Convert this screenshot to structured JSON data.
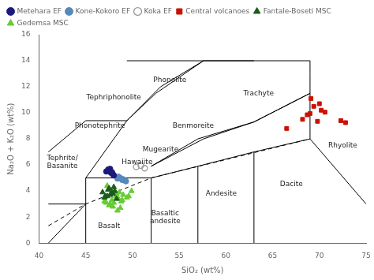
{
  "chart_data": {
    "type": "scatter",
    "xlabel": "SiO₂ (wt%)",
    "ylabel": "Na₂O + K₂O (wt%)",
    "xlim": [
      40,
      75
    ],
    "ylim": [
      0,
      16
    ],
    "xticks": [
      40,
      45,
      50,
      55,
      60,
      65,
      70,
      75
    ],
    "yticks": [
      0,
      2,
      4,
      6,
      8,
      10,
      12,
      14,
      16
    ],
    "grid": false,
    "legend": "upper left",
    "series": [
      {
        "name": "Metehara EF",
        "color": "#1a1a7c",
        "marker": "circle",
        "x": [
          47.2,
          47.5,
          47.7,
          47.9,
          48.0,
          47.6,
          47.8,
          47.4
        ],
        "values": [
          5.5,
          5.6,
          5.4,
          5.3,
          5.2,
          5.7,
          5.45,
          5.65
        ]
      },
      {
        "name": "Kone-Kokoro EF",
        "color": "#5588bb",
        "marker": "circle",
        "x": [
          48.4,
          48.7,
          49.0,
          49.2,
          48.5,
          48.9,
          49.3
        ],
        "values": [
          4.95,
          5.0,
          4.9,
          4.8,
          5.1,
          4.85,
          4.75
        ]
      },
      {
        "name": "Koka EF",
        "color": "#999999",
        "marker": "open_circle",
        "x": [
          50.4,
          50.9,
          51.3
        ],
        "values": [
          5.85,
          5.95,
          5.75
        ]
      },
      {
        "name": "Fantale-Boseti MSC",
        "color": "#1a5c1a",
        "marker": "triangle",
        "x": [
          46.8,
          47.1,
          47.4,
          47.6,
          47.9,
          48.1,
          47.0,
          47.5,
          48.3,
          47.8,
          48.0,
          47.3
        ],
        "values": [
          3.9,
          3.6,
          4.1,
          3.7,
          3.8,
          4.0,
          3.5,
          4.2,
          3.4,
          3.9,
          4.3,
          3.6
        ]
      },
      {
        "name": "Gedemsa MSC",
        "color": "#66cc33",
        "marker": "triangle",
        "x": [
          47.2,
          47.5,
          47.8,
          48.2,
          48.5,
          48.8,
          49.0,
          49.4,
          47.6,
          48.0,
          48.3,
          48.9,
          47.3,
          48.6,
          47.9,
          49.6,
          49.9,
          48.7,
          47.0,
          48.4
        ],
        "values": [
          3.1,
          2.9,
          3.3,
          3.6,
          3.4,
          3.2,
          3.7,
          3.5,
          3.0,
          3.1,
          3.8,
          3.3,
          4.4,
          3.9,
          2.8,
          3.6,
          4.0,
          2.7,
          3.2,
          2.5
        ]
      },
      {
        "name": "Central volcanoes",
        "color": "#cc1100",
        "marker": "square",
        "x": [
          66.5,
          68.2,
          68.7,
          69.0,
          69.1,
          69.4,
          69.8,
          70.0,
          70.2,
          70.6,
          72.3,
          72.8
        ],
        "values": [
          8.8,
          9.5,
          9.85,
          9.95,
          11.1,
          10.5,
          9.35,
          10.7,
          10.2,
          10.05,
          9.4,
          9.25
        ]
      },
      {
        "type": "line",
        "color": "#000000",
        "line_style": "solid",
        "x": [
          41,
          45,
          null,
          41,
          45,
          null,
          45,
          45,
          null,
          45,
          52,
          null,
          52,
          52,
          null,
          52,
          57,
          null,
          57,
          57,
          null,
          57,
          63,
          null,
          63,
          63,
          null,
          63,
          69,
          null,
          69,
          69,
          null,
          69,
          75,
          null,
          41,
          45,
          null,
          45,
          49.4,
          null,
          45,
          49.4,
          null,
          49.4,
          53,
          null,
          53,
          57.6,
          null,
          49.4,
          52.5,
          null,
          52.5,
          57.6,
          null,
          49.4,
          63,
          null,
          57.6,
          69,
          null,
          57.6,
          63,
          null,
          63,
          69,
          null,
          52,
          57.6,
          null,
          69,
          69,
          null,
          52,
          57,
          null,
          57,
          63,
          null,
          63,
          69
        ],
        "values": [
          0,
          3,
          null,
          3,
          3,
          null,
          0,
          5,
          null,
          5,
          5,
          null,
          0,
          5,
          null,
          5,
          5.9,
          null,
          0,
          5.9,
          null,
          5.9,
          7,
          null,
          0,
          7,
          null,
          7,
          8,
          null,
          8,
          13,
          null,
          8,
          3,
          null,
          7,
          9.4,
          null,
          9.4,
          9.4,
          null,
          5,
          9.4,
          null,
          9.4,
          12.0,
          null,
          12.0,
          14.0,
          null,
          9.4,
          11.5,
          null,
          11.5,
          14.0,
          null,
          14.0,
          14.0,
          null,
          14.0,
          14.0,
          null,
          8.0,
          9.3,
          null,
          9.3,
          11.5,
          null,
          5.9,
          8.0,
          null,
          13,
          14,
          null,
          5.9,
          8.0,
          null,
          8.0,
          9.3,
          null,
          9.3,
          11.5
        ]
      },
      {
        "type": "line",
        "color": "#000000",
        "line_style": "dashed",
        "x": [
          41,
          45,
          52,
          69
        ],
        "values": [
          1.33,
          3.0,
          5.0,
          8.0
        ]
      }
    ],
    "annotations": [
      {
        "x": 42.5,
        "y": 6.2,
        "text": "Tephrite/\nBasanite"
      },
      {
        "x": 47.5,
        "y": 1.3,
        "text": "Basalt"
      },
      {
        "x": 53.5,
        "y": 2.0,
        "text": "Basaltic\nandesite"
      },
      {
        "x": 59.5,
        "y": 3.8,
        "text": "Andesite"
      },
      {
        "x": 67.0,
        "y": 4.5,
        "text": "Dacite"
      },
      {
        "x": 72.5,
        "y": 7.5,
        "text": "Rhyolite"
      },
      {
        "x": 54.0,
        "y": 12.5,
        "text": "Phonolite"
      },
      {
        "x": 48.0,
        "y": 11.2,
        "text": "Tephriphonolite"
      },
      {
        "x": 46.5,
        "y": 9.0,
        "text": "Phonotephrite"
      },
      {
        "x": 56.5,
        "y": 9.0,
        "text": "Benmoreite"
      },
      {
        "x": 53.0,
        "y": 7.2,
        "text": "Mugearite"
      },
      {
        "x": 50.5,
        "y": 6.2,
        "text": "Hawaiite"
      },
      {
        "x": 63.5,
        "y": 11.5,
        "text": "Trachyte"
      }
    ]
  }
}
